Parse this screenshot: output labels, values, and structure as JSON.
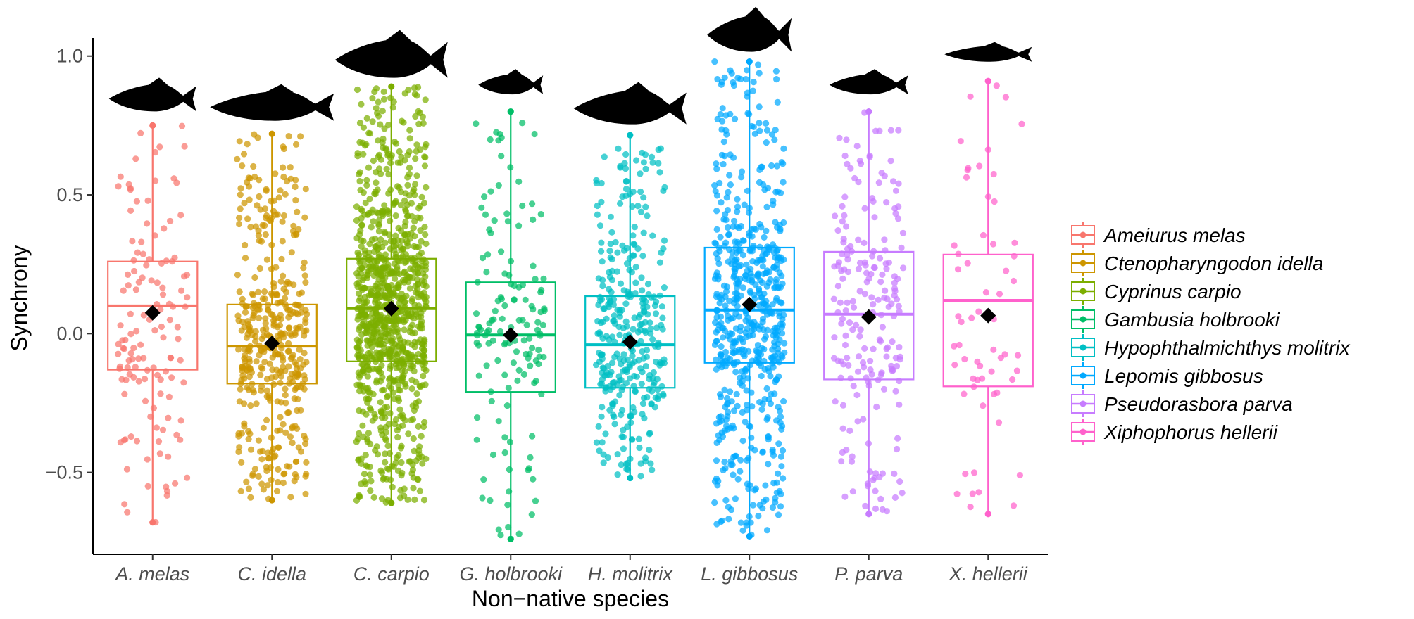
{
  "chart_data": {
    "type": "boxplot",
    "title": "",
    "xlabel": "Non−native species",
    "ylabel": "Synchrony",
    "ylim": [
      -0.795,
      1.05
    ],
    "yticks": [
      -0.5,
      0.0,
      0.5,
      1.0
    ],
    "ytick_labels": [
      "−0.5",
      "0.0",
      "0.5",
      "1.0"
    ],
    "categories": [
      "A. melas",
      "C. idella",
      "C. carpio",
      "G. holbrooki",
      "H. molitrix",
      "L. gibbosus",
      "P. parva",
      "X. hellerii"
    ],
    "legend_title": "",
    "legend_position": "right",
    "series": [
      {
        "name": "Ameiurus melas",
        "color": "#F8766D",
        "n": 130,
        "q1": -0.13,
        "median": 0.1,
        "q3": 0.26,
        "whisker_low": -0.68,
        "whisker_high": 0.75,
        "mean": 0.075
      },
      {
        "name": "Ctenopharyngodon idella",
        "color": "#CD9600",
        "n": 420,
        "q1": -0.18,
        "median": -0.045,
        "q3": 0.105,
        "whisker_low": -0.6,
        "whisker_high": 0.72,
        "mean": -0.035
      },
      {
        "name": "Cyprinus carpio",
        "color": "#7CAE00",
        "n": 950,
        "q1": -0.1,
        "median": 0.09,
        "q3": 0.27,
        "whisker_low": -0.61,
        "whisker_high": 0.89,
        "mean": 0.09
      },
      {
        "name": "Gambusia holbrooki",
        "color": "#00BE67",
        "n": 140,
        "q1": -0.21,
        "median": -0.005,
        "q3": 0.185,
        "whisker_low": -0.74,
        "whisker_high": 0.8,
        "mean": -0.005
      },
      {
        "name": "Hypophthalmichthys molitrix",
        "color": "#00BFC4",
        "n": 340,
        "q1": -0.195,
        "median": -0.04,
        "q3": 0.135,
        "whisker_low": -0.52,
        "whisker_high": 0.715,
        "mean": -0.03
      },
      {
        "name": "Lepomis gibbosus",
        "color": "#00A9FF",
        "n": 600,
        "q1": -0.105,
        "median": 0.085,
        "q3": 0.31,
        "whisker_low": -0.73,
        "whisker_high": 0.98,
        "mean": 0.105
      },
      {
        "name": "Pseudorasbora parva",
        "color": "#C77CFF",
        "n": 200,
        "q1": -0.165,
        "median": 0.07,
        "q3": 0.295,
        "whisker_low": -0.65,
        "whisker_high": 0.8,
        "mean": 0.06
      },
      {
        "name": "Xiphophorus hellerii",
        "color": "#FF61CC",
        "n": 60,
        "q1": -0.19,
        "median": 0.12,
        "q3": 0.285,
        "whisker_low": -0.65,
        "whisker_high": 0.91,
        "mean": 0.065
      }
    ]
  }
}
